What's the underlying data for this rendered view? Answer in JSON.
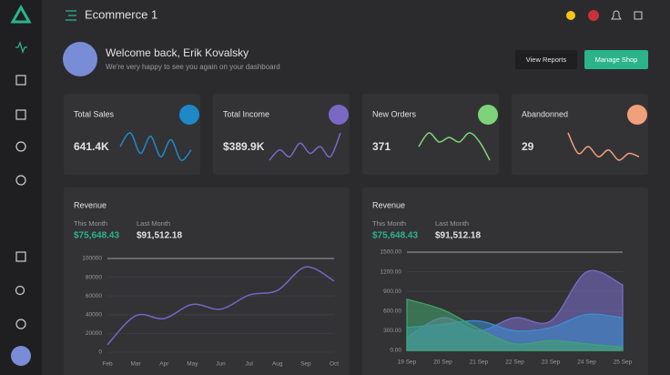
{
  "header": {
    "title": "Ecommerce 1"
  },
  "welcome": {
    "title": "Welcome back, Erik Kovalsky",
    "subtitle": "We're very happy to see you again on your dashboard",
    "buttons": [
      "View Reports",
      "Manage Shop"
    ]
  },
  "stats": [
    {
      "label": "Total Sales",
      "value": "641.4K",
      "color": "#1e88c8",
      "trend": [
        5,
        9,
        3,
        8,
        2,
        7,
        1,
        4
      ]
    },
    {
      "label": "Total Income",
      "value": "$389.9K",
      "color": "#7a68c4",
      "trend": [
        1,
        4,
        2,
        6,
        3,
        5,
        2,
        9
      ]
    },
    {
      "label": "New Orders",
      "value": "371",
      "color": "#7ed37a",
      "trend": [
        5,
        8,
        6,
        7,
        6,
        8,
        6,
        2
      ]
    },
    {
      "label": "Abandonned",
      "value": "29",
      "color": "#f0a07a",
      "trend": [
        9,
        3,
        5,
        2,
        4,
        1,
        3,
        2
      ]
    }
  ],
  "panels": [
    {
      "this_month_label": "This Month",
      "this_month": "$75,648.43",
      "last_month_label": "Last Month",
      "last_month": "$91,512.18"
    },
    {
      "this_month_label": "This Month",
      "this_month": "$75,648.43",
      "last_month_label": "Last Month",
      "last_month": "$91,512.18"
    }
  ],
  "chart_data": [
    {
      "type": "line",
      "title": "Revenue",
      "categories": [
        "Feb",
        "Mar",
        "Apr",
        "May",
        "Jun",
        "Jul",
        "Aug",
        "Sep",
        "Oct"
      ],
      "series": [
        {
          "color": "#7467c6",
          "values": [
            8000,
            39000,
            36000,
            51000,
            46000,
            61000,
            66000,
            91000,
            76000
          ]
        }
      ],
      "ylim": [
        0,
        100000
      ],
      "yticks": [
        0,
        20000,
        40000,
        60000,
        80000,
        100000
      ],
      "grid": true
    },
    {
      "type": "area",
      "title": "Revenue",
      "categories": [
        "19 Sep",
        "20 Sep",
        "21 Sep",
        "22 Sep",
        "23 Sep",
        "24 Sep",
        "25 Sep"
      ],
      "series": [
        {
          "color": "#7b6fd0",
          "values": [
            200,
            500,
            300,
            500,
            450,
            1200,
            1000
          ]
        },
        {
          "color": "#3b8fd4",
          "values": [
            350,
            400,
            450,
            300,
            350,
            550,
            500
          ]
        },
        {
          "color": "#3fa66b",
          "values": [
            780,
            620,
            330,
            100,
            150,
            100,
            50
          ]
        }
      ],
      "ylim": [
        0,
        1500
      ],
      "yticks": [
        {
          "value": 0,
          "label": "0.00"
        },
        {
          "value": 300,
          "label": "300.00"
        },
        {
          "value": 600,
          "label": "600.00"
        },
        {
          "value": 900,
          "label": "900.00"
        },
        {
          "value": 1200,
          "label": "1200.00"
        },
        {
          "value": 1500,
          "label": "1500.00"
        }
      ],
      "grid": true
    }
  ]
}
